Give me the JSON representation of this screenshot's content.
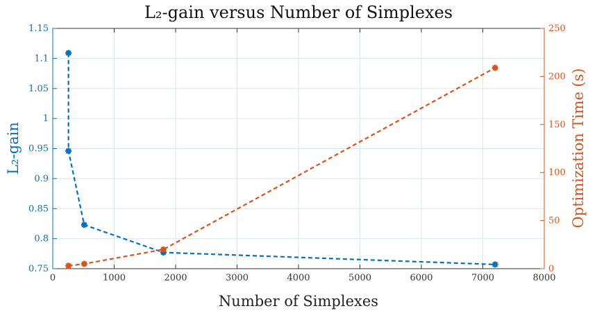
{
  "chart_data": {
    "type": "line",
    "title": "L₂-gain versus Number of Simplexes",
    "xlabel": "Number of Simplexes",
    "ylabel_left": "L₂-gain",
    "ylabel_right": "Optimization Time (s)",
    "xlim": [
      0,
      8000
    ],
    "ylim_left": [
      0.75,
      1.15
    ],
    "ylim_right": [
      0,
      250
    ],
    "x_ticks": [
      "0",
      "1000",
      "2000",
      "3000",
      "4000",
      "5000",
      "6000",
      "7000",
      "8000"
    ],
    "left_ticks": [
      "0.75",
      "0.8",
      "0.85",
      "0.9",
      "0.95",
      "1",
      "1.05",
      "1.1",
      "1.15"
    ],
    "right_ticks": [
      "0",
      "50",
      "100",
      "150",
      "200",
      "250"
    ],
    "grid": true,
    "series": [
      {
        "axis": "left",
        "color": "#0072BD",
        "x": [
          256,
          256,
          512,
          1800,
          7200
        ],
        "y": [
          1.109,
          0.946,
          0.823,
          0.777,
          0.757
        ]
      },
      {
        "axis": "right",
        "color": "#D95319",
        "x": [
          256,
          512,
          1800,
          7200
        ],
        "y": [
          3,
          5,
          20,
          209
        ]
      }
    ]
  }
}
